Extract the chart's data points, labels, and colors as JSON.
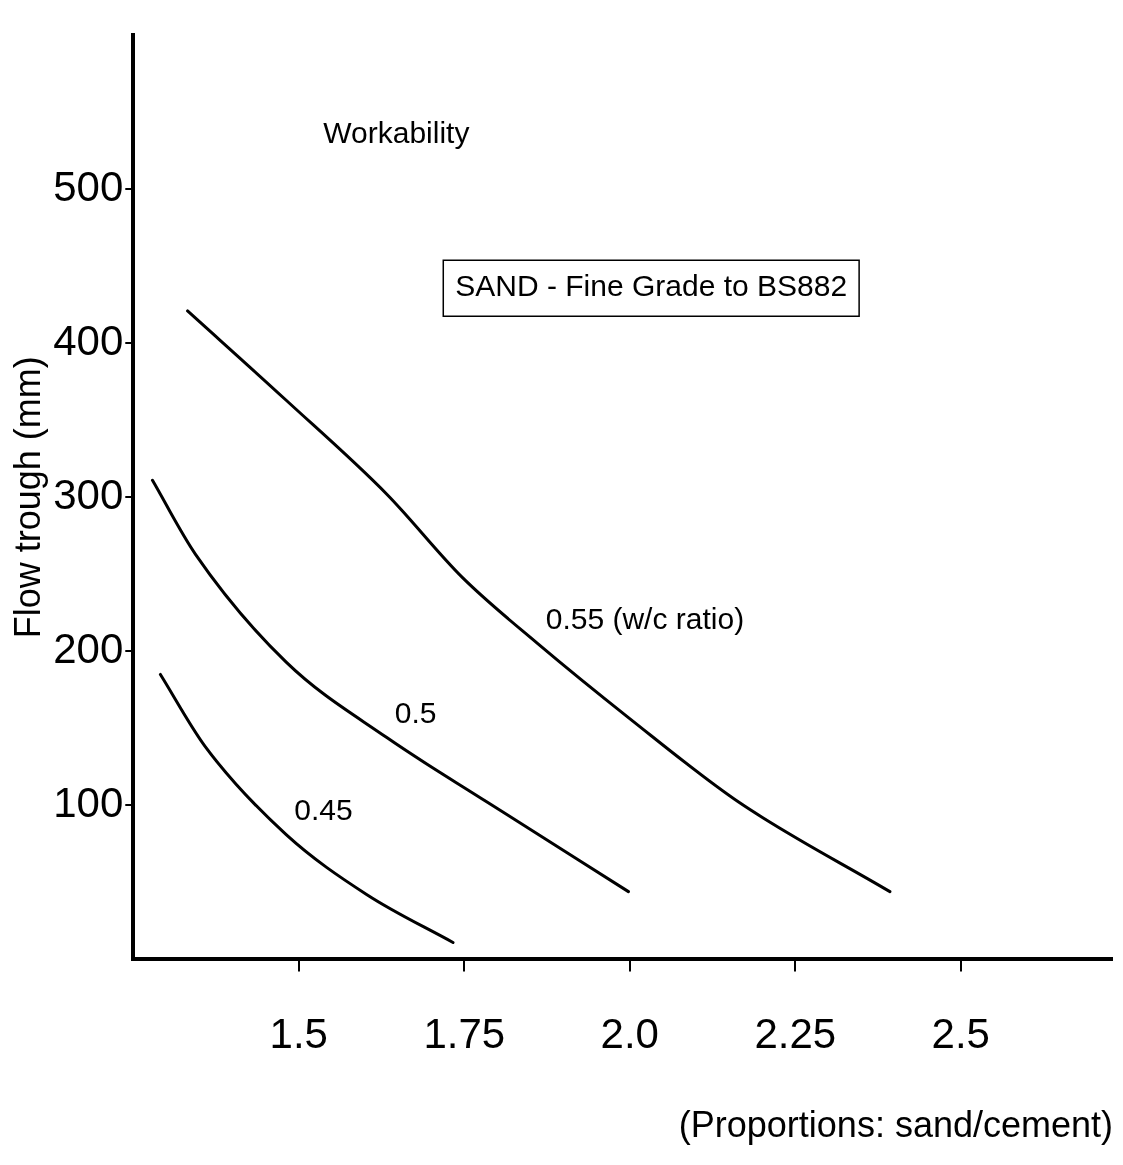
{
  "chart_data": {
    "type": "line",
    "title": "Workability",
    "xlabel": "(Proportions: sand/cement)",
    "ylabel": "Flow trough (mm)",
    "annotations": [
      "SAND - Fine Grade to BS882"
    ],
    "xlim": [
      1.25,
      2.73
    ],
    "ylim": [
      0,
      600
    ],
    "xticks": [
      1.5,
      1.75,
      {
        "value": 2,
        "label": "2.0"
      },
      2.25,
      2.5
    ],
    "yticks": [
      100,
      200,
      300,
      400,
      500
    ],
    "grid": false,
    "legend": false,
    "marker": "none",
    "line_style": "solid",
    "series": [
      {
        "name": "0.55 (w/c ratio)",
        "color": "#000000",
        "x": [
          1.332,
          1.481,
          1.633,
          1.747,
          1.861,
          1.998,
          2.165,
          2.393
        ],
        "values": [
          421,
          363,
          302,
          248,
          205,
          157,
          102,
          44
        ]
      },
      {
        "name": "0.5",
        "color": "#000000",
        "x": [
          1.279,
          1.344,
          1.481,
          1.633,
          1.785,
          1.998
        ],
        "values": [
          311,
          263,
          193,
          144,
          102,
          44
        ]
      },
      {
        "name": "0.45",
        "color": "#000000",
        "x": [
          1.291,
          1.359,
          1.481,
          1.603,
          1.733
        ],
        "values": [
          185,
          138,
          81,
          42,
          11
        ]
      }
    ]
  }
}
